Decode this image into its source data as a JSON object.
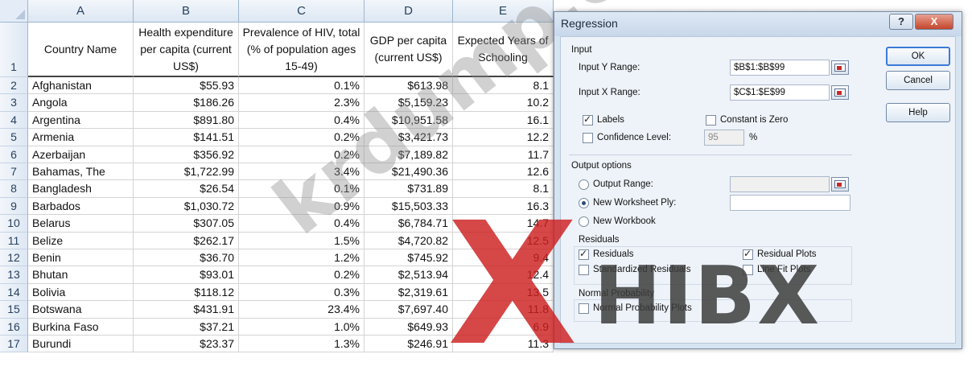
{
  "sheet": {
    "columns": [
      "A",
      "B",
      "C",
      "D",
      "E"
    ],
    "row_numbers": [
      "1",
      "2",
      "3",
      "4",
      "5",
      "6",
      "7",
      "8",
      "9",
      "10",
      "11",
      "12",
      "13",
      "14",
      "15",
      "16",
      "17"
    ],
    "headers": [
      "Country Name",
      "Health expenditure per capita (current US$)",
      "Prevalence of HIV, total (% of population ages 15-49)",
      "GDP per capita (current US$)",
      "Expected Years of Schooling"
    ],
    "rows": [
      [
        "Afghanistan",
        "$55.93",
        "0.1%",
        "$613.98",
        "8.1"
      ],
      [
        "Angola",
        "$186.26",
        "2.3%",
        "$5,159.23",
        "10.2"
      ],
      [
        "Argentina",
        "$891.80",
        "0.4%",
        "$10,951.58",
        "16.1"
      ],
      [
        "Armenia",
        "$141.51",
        "0.2%",
        "$3,421.73",
        "12.2"
      ],
      [
        "Azerbaijan",
        "$356.92",
        "0.2%",
        "$7,189.82",
        "11.7"
      ],
      [
        "Bahamas, The",
        "$1,722.99",
        "3.4%",
        "$21,490.36",
        "12.6"
      ],
      [
        "Bangladesh",
        "$26.54",
        "0.1%",
        "$731.89",
        "8.1"
      ],
      [
        "Barbados",
        "$1,030.72",
        "0.9%",
        "$15,503.33",
        "16.3"
      ],
      [
        "Belarus",
        "$307.05",
        "0.4%",
        "$6,784.71",
        "14.7"
      ],
      [
        "Belize",
        "$262.17",
        "1.5%",
        "$4,720.82",
        "12.5"
      ],
      [
        "Benin",
        "$36.70",
        "1.2%",
        "$745.92",
        "9.4"
      ],
      [
        "Bhutan",
        "$93.01",
        "0.2%",
        "$2,513.94",
        "12.4"
      ],
      [
        "Bolivia",
        "$118.12",
        "0.3%",
        "$2,319.61",
        "13.5"
      ],
      [
        "Botswana",
        "$431.91",
        "23.4%",
        "$7,697.40",
        "11.8"
      ],
      [
        "Burkina Faso",
        "$37.21",
        "1.0%",
        "$649.93",
        "6.9"
      ],
      [
        "Burundi",
        "$23.37",
        "1.3%",
        "$246.91",
        "11.3"
      ]
    ]
  },
  "dialog": {
    "title": "Regression",
    "help_glyph": "?",
    "close_glyph": "X",
    "input_group": "Input",
    "input_y_label": "Input Y Range:",
    "input_y_value": "$B$1:$B$99",
    "input_x_label": "Input X Range:",
    "input_x_value": "$C$1:$E$99",
    "labels_label": "Labels",
    "labels_checked": true,
    "constant_zero_label": "Constant is Zero",
    "constant_zero_checked": false,
    "confidence_label": "Confidence Level:",
    "confidence_value": "95",
    "confidence_unit": "%",
    "output_group": "Output options",
    "output_range_label": "Output Range:",
    "output_range_value": "",
    "new_ply_label": "New Worksheet Ply:",
    "new_ply_value": "",
    "new_workbook_label": "New Workbook",
    "selected_output": "new_ply",
    "residuals_group": "Residuals",
    "residuals_label": "Residuals",
    "residuals_checked": true,
    "residual_plots_label": "Residual Plots",
    "residual_plots_checked": true,
    "standardized_label": "Standardized Residuals",
    "standardized_checked": false,
    "line_fit_label": "Line Fit Plots",
    "line_fit_checked": false,
    "normal_group": "Normal Probability",
    "normal_plots_label": "Normal Probability Plots",
    "normal_plots_checked": false,
    "ok_label": "OK",
    "cancel_label": "Cancel",
    "help_label": "Help"
  },
  "watermarks": {
    "site": "krdump.com",
    "logo_x": "X",
    "logo_text": "HIBX"
  },
  "colors": {
    "grid": "#d4d4d4",
    "header_bg": "#dde7f3",
    "dialog_bg": "#eef3f9",
    "close_red": "#c4452c",
    "logo_red": "#cd1e1e"
  }
}
